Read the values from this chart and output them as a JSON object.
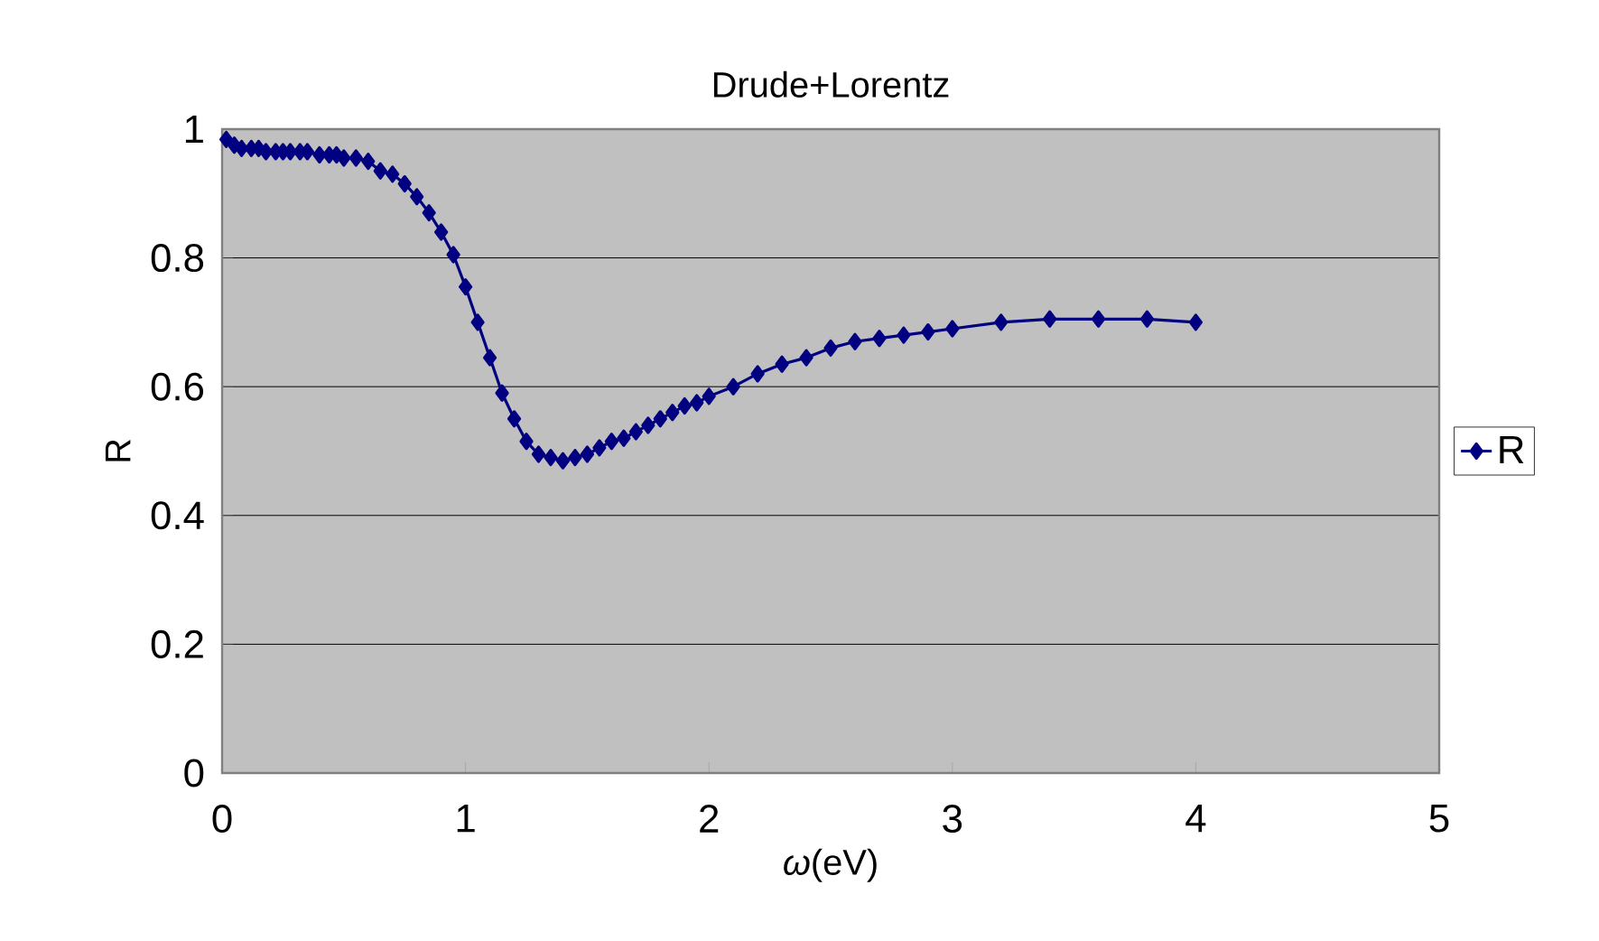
{
  "chart_data": {
    "type": "line",
    "title": "Drude+Lorentz",
    "xlabel": "*ω*(eV)",
    "ylabel": "R",
    "x": [
      0.017,
      0.05,
      0.08,
      0.12,
      0.15,
      0.18,
      0.22,
      0.25,
      0.28,
      0.32,
      0.35,
      0.4,
      0.44,
      0.47,
      0.5,
      0.55,
      0.6,
      0.65,
      0.7,
      0.75,
      0.8,
      0.85,
      0.9,
      0.95,
      1.0,
      1.05,
      1.1,
      1.15,
      1.2,
      1.25,
      1.3,
      1.35,
      1.4,
      1.45,
      1.5,
      1.55,
      1.6,
      1.65,
      1.7,
      1.75,
      1.8,
      1.85,
      1.9,
      1.95,
      2.0,
      2.1,
      2.2,
      2.3,
      2.4,
      2.5,
      2.6,
      2.7,
      2.8,
      2.9,
      3.0,
      3.2,
      3.4,
      3.6,
      3.8,
      4.0
    ],
    "series": [
      {
        "name": "R",
        "color": "#000080",
        "values": [
          0.984,
          0.975,
          0.97,
          0.97,
          0.97,
          0.965,
          0.965,
          0.965,
          0.965,
          0.965,
          0.965,
          0.96,
          0.96,
          0.96,
          0.955,
          0.955,
          0.95,
          0.935,
          0.93,
          0.915,
          0.895,
          0.87,
          0.84,
          0.805,
          0.755,
          0.7,
          0.645,
          0.59,
          0.55,
          0.515,
          0.495,
          0.49,
          0.485,
          0.49,
          0.495,
          0.505,
          0.515,
          0.52,
          0.53,
          0.54,
          0.55,
          0.56,
          0.57,
          0.575,
          0.585,
          0.6,
          0.62,
          0.635,
          0.645,
          0.66,
          0.67,
          0.675,
          0.68,
          0.685,
          0.69,
          0.7,
          0.705,
          0.705,
          0.705,
          0.7
        ]
      }
    ],
    "xlim": [
      0,
      5
    ],
    "ylim": [
      0,
      1
    ],
    "xticks": [
      0,
      1,
      2,
      3,
      4,
      5
    ],
    "yticks": [
      0,
      0.2,
      0.4,
      0.6,
      0.8,
      1
    ],
    "grid": "y",
    "legend": "right",
    "marker": "diamond",
    "line_style": "solid"
  }
}
